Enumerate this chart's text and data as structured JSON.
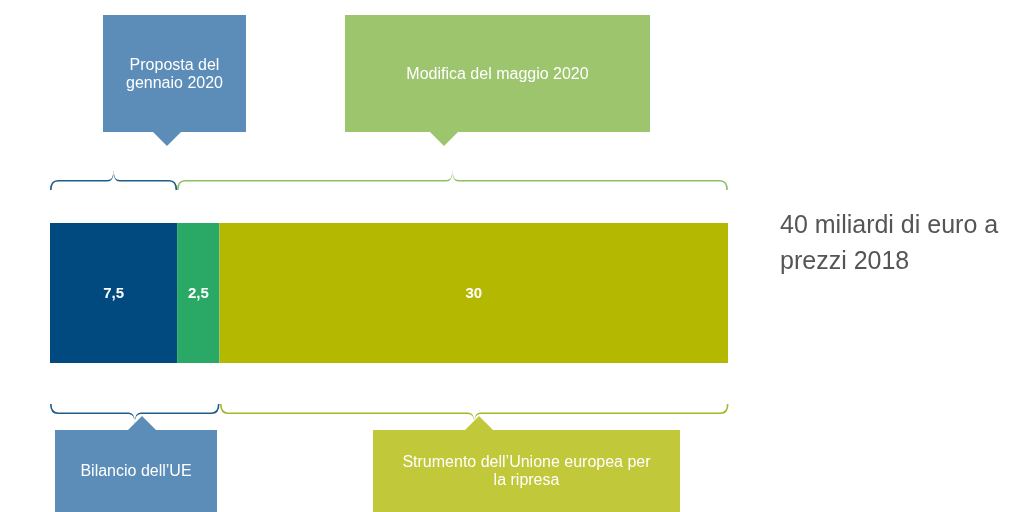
{
  "chart_data": {
    "type": "bar",
    "orientation": "horizontal",
    "stacked": true,
    "categories": [
      null
    ],
    "series": [
      {
        "color": "#004a80",
        "values": [
          7.5
        ],
        "value_labels": [
          "7,5"
        ]
      },
      {
        "color": "#2aa866",
        "values": [
          2.5
        ],
        "value_labels": [
          "2,5"
        ]
      },
      {
        "color": "#b5b800",
        "values": [
          30
        ],
        "value_labels": [
          "30"
        ]
      }
    ],
    "xlim": [
      0,
      40
    ],
    "annotations": [
      "Proposta del gennaio 2020",
      "Modifica del maggio 2020",
      "Bilancio dell’UE",
      "Strumento dell’Unione europea per la ripresa",
      "40 miliardi di euro a prezzi 2018"
    ]
  }
}
